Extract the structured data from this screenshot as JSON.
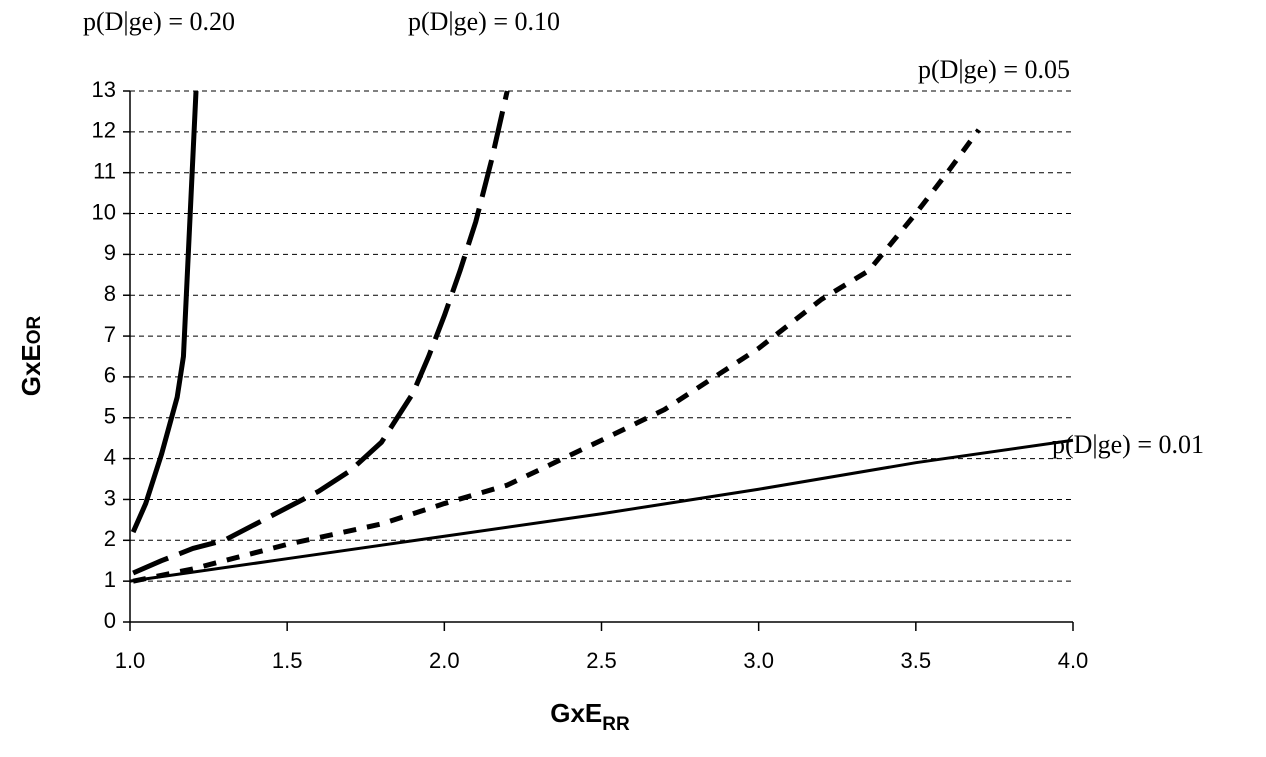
{
  "chart_data": {
    "type": "line",
    "xlabel": "GxE",
    "xlabel_sub": "RR",
    "ylabel": "GxE",
    "ylabel_sub": "OR",
    "xlim": [
      1,
      4
    ],
    "ylim": [
      0,
      13
    ],
    "xticks": [
      {
        "value": 1,
        "label": "1.0"
      },
      {
        "value": 1.5,
        "label": "1.5"
      },
      {
        "value": 2,
        "label": "2.0"
      },
      {
        "value": 2.5,
        "label": "2.5"
      },
      {
        "value": 3,
        "label": "3.0"
      },
      {
        "value": 3.5,
        "label": "3.5"
      },
      {
        "value": 4,
        "label": "4.0"
      }
    ],
    "yticks": [
      0,
      1,
      2,
      3,
      4,
      5,
      6,
      7,
      8,
      9,
      10,
      11,
      12,
      13
    ],
    "grid": true,
    "series": [
      {
        "name": "p(D|ge) = 0.20",
        "color": "#000000",
        "linestyle": "solid",
        "linewidth": 5,
        "x": [
          1.01,
          1.05,
          1.1,
          1.15,
          1.17,
          1.21
        ],
        "values": [
          2.2,
          2.9,
          4.1,
          5.5,
          6.5,
          13
        ]
      },
      {
        "name": "p(D|ge) = 0.10",
        "color": "#000000",
        "linestyle": "dashed",
        "linewidth": 5,
        "x": [
          1.01,
          1.1,
          1.2,
          1.3,
          1.4,
          1.5,
          1.6,
          1.7,
          1.8,
          1.85,
          1.9,
          1.95,
          2.0,
          2.05,
          2.1,
          2.15,
          2.2
        ],
        "values": [
          1.2,
          1.5,
          1.8,
          2.0,
          2.4,
          2.8,
          3.2,
          3.7,
          4.4,
          5.0,
          5.6,
          6.5,
          7.5,
          8.6,
          9.8,
          11.3,
          13
        ]
      },
      {
        "name": "p(D|ge) = 0.05",
        "color": "#000000",
        "linestyle": "dotted",
        "linewidth": 5,
        "x": [
          1.01,
          1.2,
          1.5,
          1.8,
          2.0,
          2.2,
          2.5,
          2.7,
          3.0,
          3.2,
          3.35,
          3.5,
          3.6,
          3.7
        ],
        "values": [
          1.0,
          1.3,
          1.9,
          2.4,
          2.9,
          3.35,
          4.45,
          5.2,
          6.7,
          7.9,
          8.6,
          10.0,
          11.0,
          12.05
        ]
      },
      {
        "name": "p(D|ge) = 0.01",
        "color": "#000000",
        "linestyle": "solid",
        "linewidth": 3,
        "x": [
          1.0,
          1.5,
          2.0,
          2.5,
          3.0,
          3.5,
          4.0
        ],
        "values": [
          1.0,
          1.55,
          2.1,
          2.65,
          3.25,
          3.9,
          4.45
        ]
      }
    ]
  }
}
